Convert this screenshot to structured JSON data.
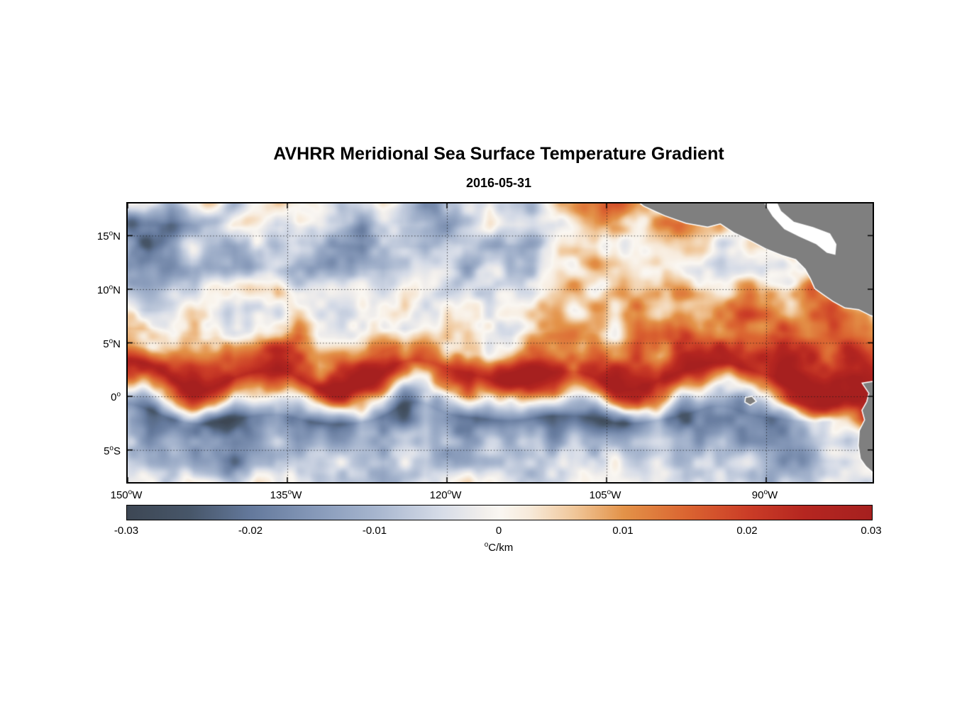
{
  "chart_data": {
    "type": "heatmap",
    "title": "AVHRR Meridional Sea Surface Temperature Gradient",
    "subtitle": "2016-05-31",
    "extent": {
      "lon_west": 150,
      "lon_east": 80,
      "lat_north": 18,
      "lat_south": -8
    },
    "x_ticks": [
      {
        "lon": 150,
        "num": "150",
        "deg": "o",
        "suffix": "W"
      },
      {
        "lon": 135,
        "num": "135",
        "deg": "o",
        "suffix": "W"
      },
      {
        "lon": 120,
        "num": "120",
        "deg": "o",
        "suffix": "W"
      },
      {
        "lon": 105,
        "num": "105",
        "deg": "o",
        "suffix": "W"
      },
      {
        "lon": 90,
        "num": "90",
        "deg": "o",
        "suffix": "W"
      }
    ],
    "y_ticks": [
      {
        "lat": 15,
        "num": "15",
        "deg": "o",
        "suffix": "N"
      },
      {
        "lat": 10,
        "num": "10",
        "deg": "o",
        "suffix": "N"
      },
      {
        "lat": 5,
        "num": "5",
        "deg": "o",
        "suffix": "N"
      },
      {
        "lat": 0,
        "num": "0",
        "deg": "o",
        "suffix": ""
      },
      {
        "lat": -5,
        "num": "5",
        "deg": "o",
        "suffix": "S"
      }
    ],
    "gridlines": {
      "lons": [
        135,
        120,
        105,
        90
      ],
      "lats": [
        15,
        10,
        5,
        0,
        -5
      ],
      "style": "dotted"
    },
    "colorbar": {
      "min": -0.03,
      "max": 0.03,
      "tick_labels": [
        "-0.03",
        "-0.02",
        "-0.01",
        "0",
        "0.01",
        "0.02",
        "0.03"
      ],
      "unit_deg": "o",
      "unit": "C/km",
      "stops": [
        [
          0.0,
          "#3D4754"
        ],
        [
          0.085,
          "#475669"
        ],
        [
          0.167,
          "#64799C"
        ],
        [
          0.25,
          "#8598B8"
        ],
        [
          0.333,
          "#A6B5CE"
        ],
        [
          0.42,
          "#D5DBE7"
        ],
        [
          0.48,
          "#F2EFEC"
        ],
        [
          0.5,
          "#FAF7F2"
        ],
        [
          0.54,
          "#F7EADA"
        ],
        [
          0.6,
          "#F0C79A"
        ],
        [
          0.667,
          "#E39248"
        ],
        [
          0.75,
          "#DB6531"
        ],
        [
          0.833,
          "#CB3D27"
        ],
        [
          0.91,
          "#B52620"
        ],
        [
          1.0,
          "#A6201F"
        ]
      ]
    },
    "grid": {
      "units": "degC/km",
      "lat_start": 18,
      "lat_step": -2,
      "lon_start": 150,
      "lon_step": -2,
      "values": [
        [
          -0.004,
          -0.006,
          -0.003,
          0.002,
          -0.002,
          -0.008,
          -0.004,
          0.002,
          0.004,
          -0.003,
          -0.006,
          -0.002,
          0.003,
          -0.006,
          -0.012,
          -0.008,
          -0.01,
          0.004,
          -0.002,
          -0.004,
          0.003,
          0.01,
          0.016,
          0.014,
          0.006,
          0.002,
          0,
          0.002,
          0,
          0,
          0,
          0,
          0,
          0,
          0,
          0
        ],
        [
          -0.015,
          -0.02,
          -0.018,
          -0.01,
          -0.004,
          -0.002,
          -0.006,
          -0.012,
          -0.008,
          -0.003,
          -0.005,
          -0.01,
          -0.006,
          -0.002,
          -0.009,
          -0.013,
          -0.01,
          -0.004,
          0.002,
          -0.003,
          -0.006,
          0.004,
          0.008,
          0.006,
          0.002,
          0.006,
          0.009,
          0.006,
          0.002,
          0.002,
          0,
          0,
          0,
          0,
          0,
          0
        ],
        [
          -0.016,
          -0.02,
          -0.014,
          -0.006,
          -0.01,
          -0.014,
          -0.01,
          -0.012,
          -0.008,
          -0.01,
          -0.014,
          -0.016,
          -0.01,
          -0.012,
          -0.015,
          -0.01,
          -0.006,
          -0.01,
          -0.012,
          -0.008,
          -0.004,
          -0.002,
          0.002,
          0.004,
          0.002,
          0.004,
          0.006,
          0.004,
          0.002,
          0.002,
          0.004,
          0.002,
          0,
          0,
          0,
          0
        ],
        [
          -0.01,
          -0.014,
          -0.012,
          -0.008,
          -0.012,
          -0.016,
          -0.012,
          -0.006,
          -0.01,
          -0.012,
          -0.008,
          -0.012,
          -0.014,
          -0.008,
          -0.01,
          -0.012,
          -0.008,
          -0.004,
          -0.008,
          -0.006,
          -0.002,
          0.002,
          0.004,
          0.002,
          0.004,
          0.002,
          0.004,
          0.006,
          0.003,
          0.002,
          0.004,
          0.006,
          0.004,
          0.002,
          0,
          0
        ],
        [
          -0.004,
          -0.006,
          -0.008,
          -0.004,
          -0.006,
          -0.008,
          -0.004,
          -0.002,
          -0.006,
          -0.004,
          -0.002,
          -0.004,
          -0.006,
          -0.002,
          -0.004,
          -0.002,
          0,
          -0.002,
          -0.004,
          -0.002,
          0.002,
          0.004,
          0.002,
          0.004,
          0.006,
          0.004,
          0.006,
          0.008,
          0.006,
          0.008,
          0.012,
          0.01,
          0.012,
          0.008,
          0.004,
          0.002
        ],
        [
          -0.002,
          -0.004,
          -0.002,
          0,
          -0.002,
          -0.004,
          -0.002,
          0,
          0.002,
          -0.002,
          0,
          -0.002,
          -0.004,
          0,
          -0.002,
          0,
          0.002,
          0,
          -0.002,
          0.002,
          0.004,
          0.002,
          0.006,
          0.004,
          0.008,
          0.006,
          0.01,
          0.012,
          0.008,
          0.01,
          0.012,
          0.01,
          0.008,
          0.01,
          0.008,
          0.006
        ],
        [
          0.012,
          0.014,
          0.008,
          0.002,
          0,
          -0.002,
          0.002,
          0.004,
          0.002,
          0,
          0.002,
          0.004,
          0.002,
          0,
          0.002,
          0.004,
          0.006,
          0.002,
          0,
          0.004,
          0.006,
          0.008,
          0.006,
          0.01,
          0.012,
          0.01,
          0.014,
          0.012,
          0.01,
          0.012,
          0.014,
          0.01,
          0.008,
          0.014,
          0.016,
          0.01
        ],
        [
          0.014,
          0.012,
          0.016,
          0.02,
          0.016,
          0.012,
          0.018,
          0.022,
          0.016,
          0.01,
          0.014,
          0.02,
          0.022,
          0.016,
          0.01,
          0.008,
          0.006,
          0.01,
          0.016,
          0.022,
          0.018,
          0.012,
          0.016,
          0.02,
          0.016,
          0.012,
          0.016,
          0.02,
          0.018,
          0.014,
          0.018,
          0.022,
          0.02,
          0.016,
          0.018,
          0.02
        ],
        [
          0.028,
          0.03,
          0.03,
          0.028,
          0.026,
          0.03,
          0.03,
          0.026,
          0.024,
          0.028,
          0.03,
          0.03,
          0.028,
          0.022,
          0.018,
          0.016,
          0.02,
          0.026,
          0.03,
          0.03,
          0.026,
          0.022,
          0.026,
          0.03,
          0.028,
          0.024,
          0.028,
          0.03,
          0.028,
          0.024,
          0.026,
          0.03,
          0.03,
          0.028,
          0.03,
          0.03
        ],
        [
          0.008,
          0.004,
          0.006,
          0.01,
          0.004,
          0,
          0.004,
          0.008,
          0.002,
          -0.004,
          0.002,
          0.006,
          0.004,
          -0.002,
          0.004,
          0.008,
          0.01,
          0.006,
          0.002,
          0.006,
          0.01,
          0.004,
          0,
          0.006,
          0.01,
          0.006,
          0.002,
          0.008,
          0.004,
          0,
          0.006,
          0.012,
          0.02,
          0.026,
          0.03,
          0.03
        ],
        [
          -0.022,
          -0.026,
          -0.024,
          -0.02,
          -0.024,
          -0.026,
          -0.022,
          -0.018,
          -0.024,
          -0.026,
          -0.022,
          -0.02,
          -0.024,
          -0.022,
          -0.018,
          -0.022,
          -0.024,
          -0.02,
          -0.018,
          -0.022,
          -0.024,
          -0.02,
          -0.022,
          -0.024,
          -0.02,
          -0.018,
          -0.022,
          -0.02,
          -0.016,
          -0.018,
          -0.02,
          -0.016,
          -0.012,
          -0.008,
          0.012,
          0.026
        ],
        [
          -0.014,
          -0.018,
          -0.016,
          -0.012,
          -0.016,
          -0.018,
          -0.014,
          -0.012,
          -0.016,
          -0.014,
          -0.012,
          -0.014,
          -0.016,
          -0.012,
          -0.01,
          -0.014,
          -0.016,
          -0.012,
          -0.01,
          -0.012,
          -0.014,
          -0.012,
          -0.01,
          -0.014,
          -0.012,
          -0.008,
          -0.012,
          -0.014,
          -0.01,
          -0.012,
          -0.014,
          -0.016,
          -0.012,
          -0.008,
          -0.006,
          -0.004
        ],
        [
          -0.008,
          -0.012,
          -0.01,
          -0.006,
          -0.01,
          -0.012,
          -0.008,
          -0.006,
          -0.01,
          -0.008,
          -0.004,
          -0.008,
          -0.012,
          -0.008,
          -0.006,
          -0.01,
          -0.008,
          -0.004,
          -0.006,
          -0.008,
          -0.006,
          -0.004,
          -0.008,
          -0.006,
          -0.004,
          -0.006,
          -0.008,
          -0.01,
          -0.006,
          -0.008,
          -0.012,
          -0.01,
          -0.014,
          -0.012,
          -0.01,
          -0.008
        ],
        [
          -0.004,
          -0.006,
          -0.004,
          -0.002,
          -0.004,
          -0.006,
          -0.002,
          0,
          -0.004,
          -0.006,
          -0.002,
          -0.004,
          -0.006,
          -0.002,
          0,
          -0.004,
          -0.002,
          0,
          -0.002,
          -0.004,
          -0.002,
          0,
          -0.004,
          -0.002,
          0,
          -0.004,
          -0.002,
          -0.006,
          -0.002,
          -0.004,
          -0.008,
          -0.006,
          -0.01,
          -0.008,
          -0.006,
          -0.004
        ]
      ]
    },
    "noise": {
      "seed": 7,
      "meander_deg": 1.1,
      "octave1": {
        "scale": 0.5,
        "amp": 0.006
      },
      "octave2": {
        "scale": 0.17,
        "amp": 0.0045
      }
    },
    "land": {
      "fill": "#7F7F7F",
      "coast_outline": "#FFFFFF",
      "polygons": [
        {
          "name": "central-america",
          "points": [
            [
              103,
              19
            ],
            [
              101.5,
              17.8
            ],
            [
              99.5,
              16.9
            ],
            [
              97.5,
              16.2
            ],
            [
              95.5,
              15.85
            ],
            [
              94.3,
              16.15
            ],
            [
              93,
              15.3
            ],
            [
              91.5,
              14.6
            ],
            [
              90,
              13.8
            ],
            [
              88.5,
              13.2
            ],
            [
              87.2,
              12.8
            ],
            [
              86.3,
              11.9
            ],
            [
              85.8,
              11
            ],
            [
              85.4,
              10.1
            ],
            [
              84.7,
              9.6
            ],
            [
              83.7,
              8.9
            ],
            [
              82.6,
              8.3
            ],
            [
              81.3,
              8.15
            ],
            [
              80.2,
              7.6
            ],
            [
              78.5,
              7.1
            ],
            [
              78.5,
              19
            ]
          ]
        },
        {
          "name": "south-america",
          "points": [
            [
              80.9,
              1.2
            ],
            [
              80.3,
              0.3
            ],
            [
              80.5,
              -0.5
            ],
            [
              80.95,
              -1.3
            ],
            [
              80.7,
              -2.2
            ],
            [
              81.2,
              -3.2
            ],
            [
              81.3,
              -4.6
            ],
            [
              81.1,
              -5.8
            ],
            [
              80.6,
              -6.5
            ],
            [
              79.8,
              -7.2
            ],
            [
              79.2,
              -8.2
            ],
            [
              78.5,
              -8.6
            ],
            [
              78.5,
              1.6
            ]
          ]
        },
        {
          "name": "galapagos",
          "points": [
            [
              91.9,
              -0.15
            ],
            [
              91.35,
              -0.05
            ],
            [
              91.0,
              -0.45
            ],
            [
              91.5,
              -0.75
            ],
            [
              91.95,
              -0.5
            ]
          ]
        }
      ],
      "water_gaps": [
        {
          "name": "caribbean",
          "points": [
            [
              89.5,
              19.2
            ],
            [
              88.6,
              17.3
            ],
            [
              87.4,
              16.3
            ],
            [
              85.6,
              15.8
            ],
            [
              84.0,
              15.2
            ],
            [
              83.4,
              14.2
            ],
            [
              83.5,
              13.2
            ],
            [
              84.3,
              13.4
            ],
            [
              85.3,
              14.2
            ],
            [
              86.9,
              14.9
            ],
            [
              88.3,
              15.6
            ],
            [
              89.4,
              16.8
            ],
            [
              90.3,
              18.2
            ],
            [
              90.5,
              19.2
            ]
          ]
        }
      ]
    }
  }
}
